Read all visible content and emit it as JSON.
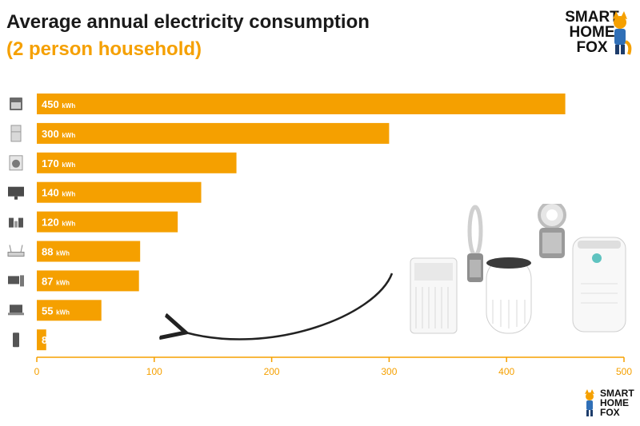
{
  "title": "Average annual electricity consumption",
  "subtitle": "(2 person household)",
  "logo": {
    "line1": "SMART",
    "line2": "HOME",
    "line3": "FOX"
  },
  "colors": {
    "bar": "#f5a000",
    "title": "#1a1a1a",
    "subtitle": "#f5a000",
    "axis": "#f5a000"
  },
  "chart_data": {
    "type": "bar",
    "orientation": "horizontal",
    "title": "Average annual electricity consumption",
    "subtitle": "(2 person household)",
    "unit": "kWh",
    "values": [
      450,
      300,
      170,
      140,
      120,
      88,
      87,
      55,
      8
    ],
    "category_icons": [
      "oven-icon",
      "fridge-icon",
      "washing-machine-icon",
      "monitor-icon",
      "speaker-icon",
      "router-icon",
      "desktop-computer-icon",
      "laptop-icon",
      "phone-icon"
    ],
    "xlim": [
      0,
      500
    ],
    "x_ticks": [
      0,
      100,
      200,
      300,
      400,
      500
    ],
    "grid": false,
    "legend": "none"
  }
}
